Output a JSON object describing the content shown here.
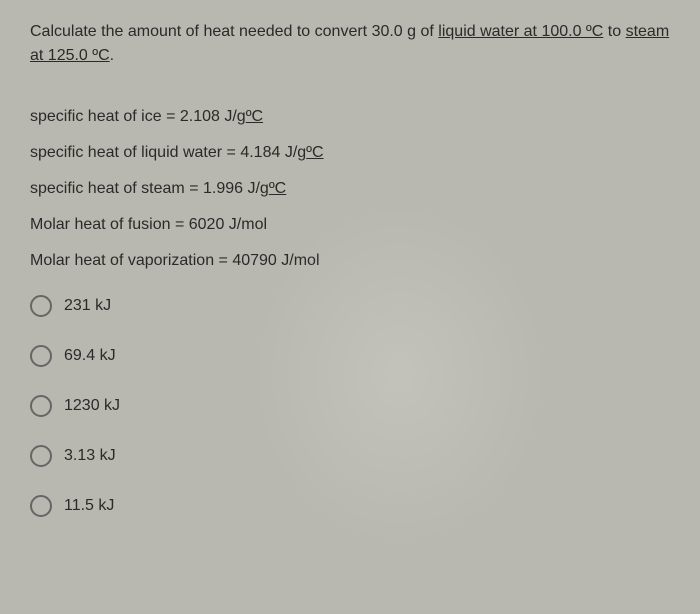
{
  "question": {
    "prefix": "Calculate the amount of heat needed to convert 30.0 g of ",
    "underlined1": "liquid water at 100.0 ºC",
    "middle": " to ",
    "underlined2": "steam at 125.0 ºC",
    "suffix": "."
  },
  "data_lines": [
    {
      "prefix": "specific heat of ice = 2.108 J/g",
      "unit": "ºC"
    },
    {
      "prefix": "specific heat of liquid water = 4.184 J/g",
      "unit": "ºC"
    },
    {
      "prefix": "specific heat of steam = 1.996 J/g",
      "unit": "ºC"
    },
    {
      "prefix": "Molar heat of fusion = 6020 J/mol",
      "unit": ""
    },
    {
      "prefix": "Molar heat of vaporization = 40790 J/mol",
      "unit": ""
    }
  ],
  "options": [
    "231 kJ",
    "69.4 kJ",
    "1230 kJ",
    "3.13 kJ",
    "11.5 kJ"
  ],
  "colors": {
    "background": "#b8b8b0",
    "text": "#2a2a2a",
    "radio_border": "#666666"
  },
  "typography": {
    "font_family": "Arial, sans-serif",
    "question_fontsize": 16,
    "data_fontsize": 16,
    "option_fontsize": 16
  }
}
